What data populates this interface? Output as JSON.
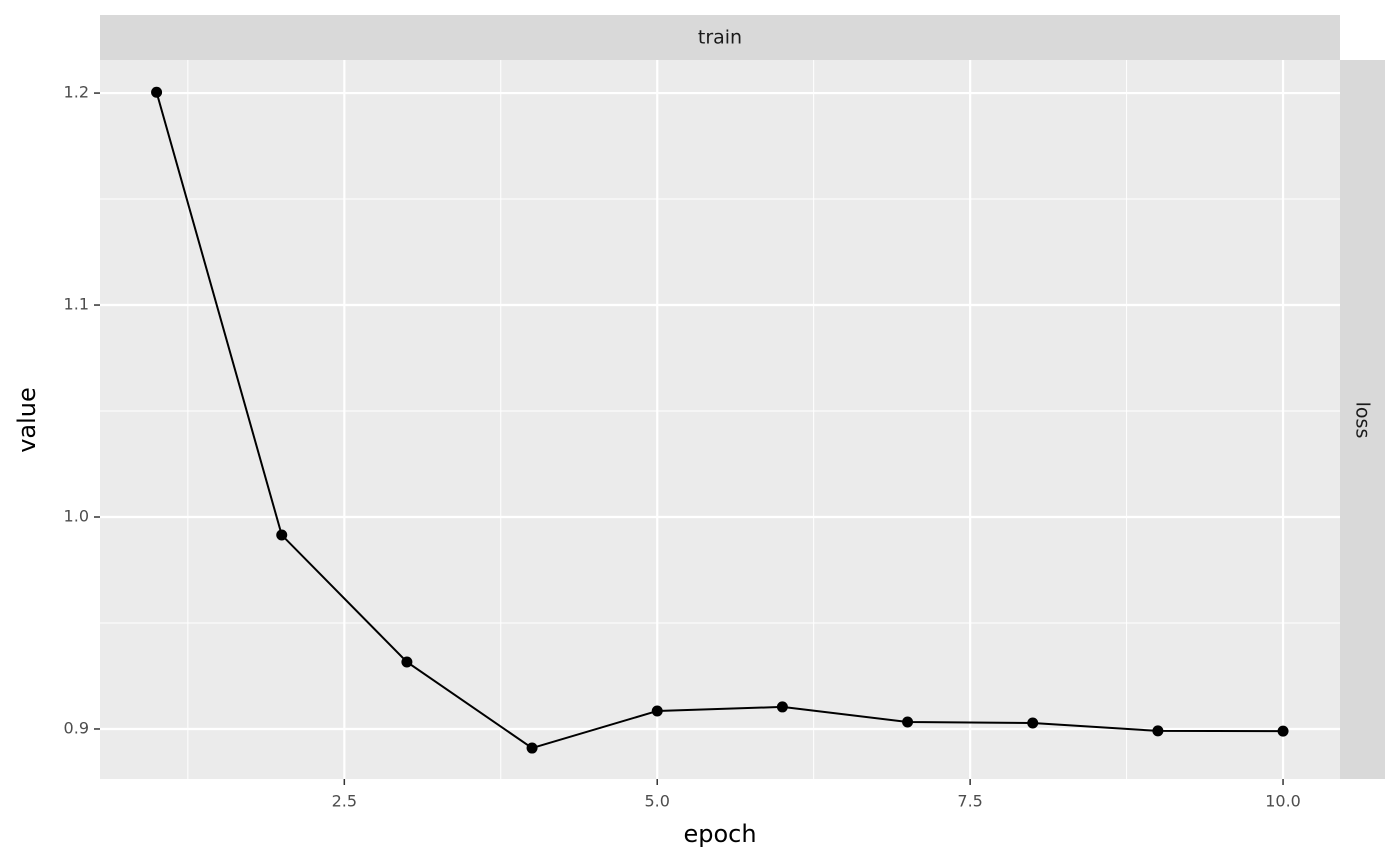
{
  "chart_data": {
    "type": "line",
    "facet_top": "train",
    "facet_right": "loss",
    "x_label": "epoch",
    "y_label": "value",
    "x": [
      1,
      2,
      3,
      4,
      5,
      6,
      7,
      8,
      9,
      10
    ],
    "values": [
      1.2004,
      0.9915,
      0.9316,
      0.891,
      0.9085,
      0.9104,
      0.9033,
      0.9028,
      0.8991,
      0.899
    ],
    "color": "#000000",
    "xlim": [
      0.548,
      10.455
    ],
    "ylim": [
      0.8764,
      1.2156
    ],
    "xticks": [
      2.5,
      {
        "value": 5,
        "label": "5.0"
      },
      7.5,
      {
        "value": 10,
        "label": "10.0"
      }
    ],
    "yticks": [
      0.9,
      {
        "value": 1,
        "label": "1.0"
      },
      1.1,
      1.2
    ],
    "x_minor_grid": [
      1.25,
      3.75,
      6.25,
      8.75
    ],
    "y_minor_grid": [
      0.95,
      1.05,
      1.15
    ],
    "grid": true
  }
}
